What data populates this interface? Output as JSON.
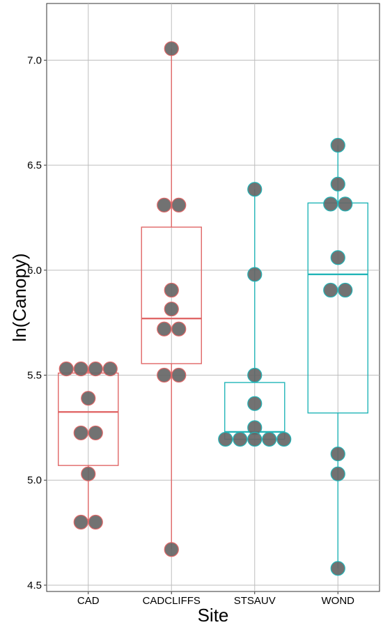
{
  "chart_data": {
    "type": "box",
    "xlabel": "Site",
    "ylabel": "ln(Canopy)",
    "ylim": [
      4.47,
      7.27
    ],
    "yticks": [
      "4.5",
      "5.0",
      "5.5",
      "6.0",
      "6.5",
      "7.0"
    ],
    "grid": true,
    "colors": {
      "red": "#e06666",
      "teal": "#22b5b8",
      "point": "#666666"
    },
    "categories": [
      {
        "name": "CAD",
        "color": "red",
        "q1": 5.07,
        "median": 5.325,
        "q3": 5.51,
        "whisker_low": 4.8,
        "whisker_high": 5.53,
        "points": [
          [
            5.53,
            -1.5
          ],
          [
            5.53,
            -0.5
          ],
          [
            5.53,
            0.5
          ],
          [
            5.53,
            1.5
          ],
          [
            5.39,
            0
          ],
          [
            5.225,
            -0.5
          ],
          [
            5.225,
            0.5
          ],
          [
            5.03,
            0
          ],
          [
            4.8,
            -0.5
          ],
          [
            4.8,
            0.5
          ]
        ]
      },
      {
        "name": "CADCLIFFS",
        "color": "red",
        "q1": 5.555,
        "median": 5.77,
        "q3": 6.205,
        "whisker_low": 4.67,
        "whisker_high": 7.055,
        "points": [
          [
            7.055,
            0
          ],
          [
            6.31,
            -0.5
          ],
          [
            6.31,
            0.5
          ],
          [
            5.905,
            0
          ],
          [
            5.815,
            0
          ],
          [
            5.72,
            -0.5
          ],
          [
            5.72,
            0.5
          ],
          [
            5.5,
            -0.5
          ],
          [
            5.5,
            0.5
          ],
          [
            4.67,
            0
          ]
        ]
      },
      {
        "name": "STSAUV",
        "color": "teal",
        "q1": 5.195,
        "median": 5.23,
        "q3": 5.465,
        "whisker_low": 5.195,
        "whisker_high": 6.385,
        "points": [
          [
            6.385,
            0
          ],
          [
            5.98,
            0
          ],
          [
            5.5,
            0
          ],
          [
            5.365,
            0
          ],
          [
            5.25,
            0
          ],
          [
            5.195,
            -2
          ],
          [
            5.195,
            -1
          ],
          [
            5.195,
            0
          ],
          [
            5.195,
            1
          ],
          [
            5.195,
            2
          ]
        ]
      },
      {
        "name": "WOND",
        "color": "teal",
        "q1": 5.32,
        "median": 5.98,
        "q3": 6.32,
        "whisker_low": 4.58,
        "whisker_high": 6.595,
        "points": [
          [
            6.595,
            0
          ],
          [
            6.41,
            0
          ],
          [
            6.315,
            -0.5
          ],
          [
            6.315,
            0.5
          ],
          [
            6.06,
            0
          ],
          [
            5.905,
            -0.5
          ],
          [
            5.905,
            0.5
          ],
          [
            5.125,
            0
          ],
          [
            5.03,
            0
          ],
          [
            4.58,
            0
          ]
        ]
      }
    ]
  }
}
